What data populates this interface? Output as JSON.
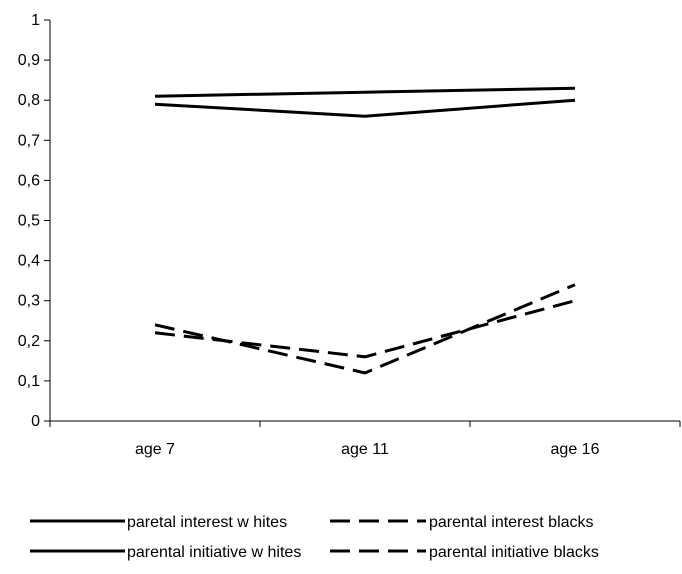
{
  "chart_data": {
    "type": "line",
    "categories": [
      "age 7",
      "age 11",
      "age 16"
    ],
    "ylim": [
      0,
      1
    ],
    "yticks": [
      "0",
      "0,1",
      "0,2",
      "0,3",
      "0,4",
      "0,5",
      "0,6",
      "0,7",
      "0,8",
      "0,9",
      "1"
    ],
    "grid": false,
    "legend_position": "bottom",
    "series": [
      {
        "name": "paretal interest w hites",
        "values": [
          0.81,
          0.82,
          0.83
        ],
        "line_style": "solid"
      },
      {
        "name": "parental interest blacks",
        "values": [
          0.24,
          0.12,
          0.34
        ],
        "line_style": "dashed"
      },
      {
        "name": "parental initiative w hites",
        "values": [
          0.79,
          0.76,
          0.8
        ],
        "line_style": "solid"
      },
      {
        "name": "parental initiative blacks",
        "values": [
          0.22,
          0.16,
          0.3
        ],
        "line_style": "dashed"
      }
    ],
    "line_color": "#000000"
  }
}
